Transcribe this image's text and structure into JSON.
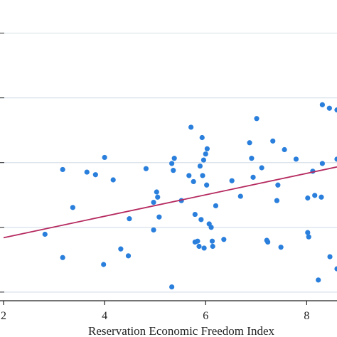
{
  "chart_data": {
    "type": "scatter",
    "title": "",
    "xlabel": "Reservation Economic Freedom Index",
    "ylabel": "",
    "xlim": [
      2,
      8.6
    ],
    "ylim": [
      -0.1,
      3.4
    ],
    "x_ticks": [
      2,
      4,
      6,
      8
    ],
    "x_tick_labels": [
      "2",
      "4",
      "6",
      "8"
    ],
    "y_gridlines": [
      0,
      0.75,
      1.5,
      2.25,
      3.0
    ],
    "grid": true,
    "legend": "none",
    "colors": {
      "points": "#2a7fdc",
      "fit_line": "#b5295f",
      "grid": "#d8e1ea",
      "axis": "#222222"
    },
    "series": [
      {
        "values": [
          {
            "x": 2.82,
            "y": 0.67
          },
          {
            "x": 3.17,
            "y": 0.4
          },
          {
            "x": 3.17,
            "y": 1.42
          },
          {
            "x": 3.37,
            "y": 0.98
          },
          {
            "x": 3.65,
            "y": 1.39
          },
          {
            "x": 3.82,
            "y": 1.36
          },
          {
            "x": 3.98,
            "y": 0.32
          },
          {
            "x": 4.0,
            "y": 1.56
          },
          {
            "x": 4.17,
            "y": 1.3
          },
          {
            "x": 4.32,
            "y": 0.5
          },
          {
            "x": 4.47,
            "y": 0.42
          },
          {
            "x": 4.49,
            "y": 0.85
          },
          {
            "x": 4.82,
            "y": 1.43
          },
          {
            "x": 4.97,
            "y": 0.72
          },
          {
            "x": 4.97,
            "y": 1.04
          },
          {
            "x": 5.03,
            "y": 1.16
          },
          {
            "x": 5.05,
            "y": 1.1
          },
          {
            "x": 5.08,
            "y": 0.87
          },
          {
            "x": 5.33,
            "y": 0.06
          },
          {
            "x": 5.33,
            "y": 1.49
          },
          {
            "x": 5.36,
            "y": 1.41
          },
          {
            "x": 5.38,
            "y": 1.55
          },
          {
            "x": 5.52,
            "y": 1.06
          },
          {
            "x": 5.67,
            "y": 1.35
          },
          {
            "x": 5.71,
            "y": 1.91
          },
          {
            "x": 5.76,
            "y": 1.28
          },
          {
            "x": 5.79,
            "y": 0.9
          },
          {
            "x": 5.79,
            "y": 0.58
          },
          {
            "x": 5.84,
            "y": 0.59
          },
          {
            "x": 5.87,
            "y": 0.53
          },
          {
            "x": 5.89,
            "y": 1.46
          },
          {
            "x": 5.91,
            "y": 0.84
          },
          {
            "x": 5.93,
            "y": 1.79
          },
          {
            "x": 5.94,
            "y": 1.35
          },
          {
            "x": 5.96,
            "y": 1.53
          },
          {
            "x": 5.97,
            "y": 0.51
          },
          {
            "x": 6.0,
            "y": 1.6
          },
          {
            "x": 6.02,
            "y": 1.24
          },
          {
            "x": 6.03,
            "y": 1.66
          },
          {
            "x": 6.07,
            "y": 0.79
          },
          {
            "x": 6.11,
            "y": 0.75
          },
          {
            "x": 6.13,
            "y": 0.59
          },
          {
            "x": 6.14,
            "y": 0.53
          },
          {
            "x": 6.2,
            "y": 1.0
          },
          {
            "x": 6.36,
            "y": 0.61
          },
          {
            "x": 6.52,
            "y": 1.29
          },
          {
            "x": 6.69,
            "y": 1.11
          },
          {
            "x": 6.87,
            "y": 1.73
          },
          {
            "x": 6.91,
            "y": 1.55
          },
          {
            "x": 6.94,
            "y": 1.33
          },
          {
            "x": 7.01,
            "y": 2.01
          },
          {
            "x": 7.11,
            "y": 1.44
          },
          {
            "x": 7.21,
            "y": 0.6
          },
          {
            "x": 7.23,
            "y": 0.58
          },
          {
            "x": 7.33,
            "y": 1.75
          },
          {
            "x": 7.41,
            "y": 1.06
          },
          {
            "x": 7.43,
            "y": 1.24
          },
          {
            "x": 7.49,
            "y": 0.52
          },
          {
            "x": 7.56,
            "y": 1.65
          },
          {
            "x": 7.79,
            "y": 1.54
          },
          {
            "x": 8.02,
            "y": 1.09
          },
          {
            "x": 8.02,
            "y": 0.69
          },
          {
            "x": 8.04,
            "y": 0.64
          },
          {
            "x": 8.12,
            "y": 1.4
          },
          {
            "x": 8.16,
            "y": 1.12
          },
          {
            "x": 8.29,
            "y": 1.1
          },
          {
            "x": 8.31,
            "y": 1.49
          },
          {
            "x": 8.46,
            "y": 0.41
          },
          {
            "x": 8.23,
            "y": 0.14
          },
          {
            "x": 8.31,
            "y": 2.17
          },
          {
            "x": 8.45,
            "y": 2.13
          },
          {
            "x": 8.6,
            "y": 2.11
          },
          {
            "x": 8.6,
            "y": 1.54
          },
          {
            "x": 8.6,
            "y": 0.27
          }
        ]
      }
    ],
    "fit_line": {
      "x": [
        2,
        8.6
      ],
      "y": [
        0.63,
        1.45
      ]
    }
  }
}
